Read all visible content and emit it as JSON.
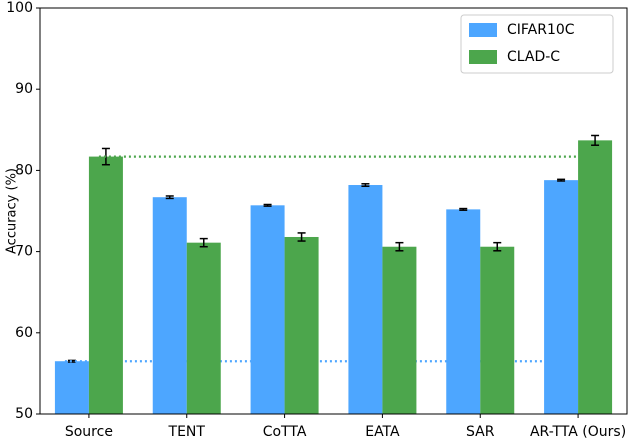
{
  "chart_data": {
    "type": "bar",
    "ylabel": "Accuracy (%)",
    "categories": [
      "Source",
      "TENT",
      "CoTTA",
      "EATA",
      "SAR",
      "AR-TTA (Ours)"
    ],
    "series": [
      {
        "name": "CIFAR10C",
        "color": "#4da6ff",
        "values": [
          56.5,
          76.7,
          75.7,
          78.2,
          75.2,
          78.8
        ],
        "errors": [
          0.1,
          0.15,
          0.1,
          0.15,
          0.1,
          0.1
        ]
      },
      {
        "name": "CLAD-C",
        "color": "#4ca64c",
        "values": [
          81.7,
          71.1,
          71.8,
          70.6,
          70.6,
          83.7
        ],
        "errors": [
          1.0,
          0.5,
          0.5,
          0.5,
          0.5,
          0.6
        ]
      }
    ],
    "ylim": [
      50,
      100
    ],
    "yticks": [
      50,
      60,
      70,
      80,
      90,
      100
    ],
    "reference_lines": true,
    "legend": "upper right"
  }
}
